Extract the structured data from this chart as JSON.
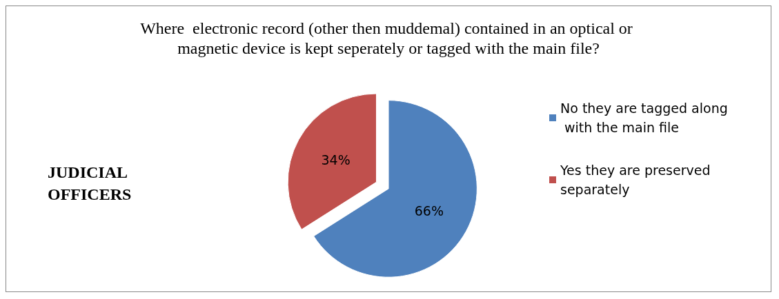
{
  "chart_data": {
    "type": "pie",
    "title": "Where  electronic record (other then muddemal) contained in an optical or magnetic device is kept seperately or tagged with the main file?",
    "categories": [
      "No they are tagged along with the main file",
      "Yes they are preserved separately"
    ],
    "values": [
      66,
      34
    ],
    "colors": [
      "#4f81bd",
      "#c0504d"
    ],
    "value_labels": [
      "66%",
      "34%"
    ],
    "legend": "right",
    "annotations": [
      "JUDICIAL OFFICERS"
    ]
  }
}
